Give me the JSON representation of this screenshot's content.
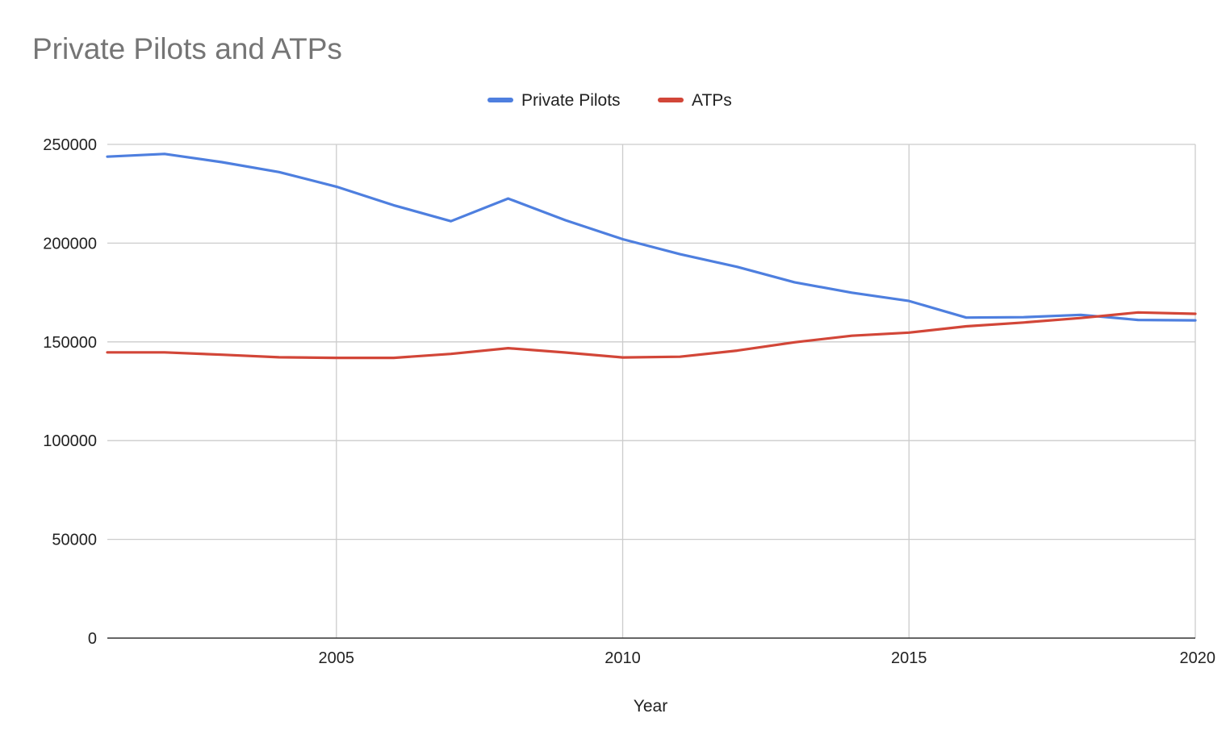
{
  "chart_data": {
    "type": "line",
    "title": "Private Pilots and ATPs",
    "xlabel": "Year",
    "ylabel": "",
    "x": [
      2001,
      2002,
      2003,
      2004,
      2005,
      2006,
      2007,
      2008,
      2009,
      2010,
      2011,
      2012,
      2013,
      2014,
      2015,
      2016,
      2017,
      2018,
      2019,
      2020
    ],
    "series": [
      {
        "name": "Private Pilots",
        "color": "#4e7fdf",
        "values": [
          243800,
          245200,
          241000,
          236000,
          228600,
          219200,
          211100,
          222600,
          211600,
          202000,
          194400,
          188000,
          180200,
          174900,
          170700,
          162300,
          162500,
          163700,
          161100,
          160900
        ]
      },
      {
        "name": "ATPs",
        "color": "#d24638",
        "values": [
          144700,
          144700,
          143500,
          142200,
          141900,
          141900,
          143900,
          146800,
          144600,
          142100,
          142500,
          145600,
          149800,
          153100,
          154700,
          157900,
          159800,
          162100,
          164900,
          164200
        ]
      }
    ],
    "xlim": [
      2001,
      2020
    ],
    "ylim": [
      0,
      250000
    ],
    "x_ticks": [
      2005,
      2010,
      2015,
      2020
    ],
    "y_ticks": [
      0,
      50000,
      100000,
      150000,
      200000,
      250000
    ],
    "grid": true,
    "legend_position": "top-center"
  }
}
